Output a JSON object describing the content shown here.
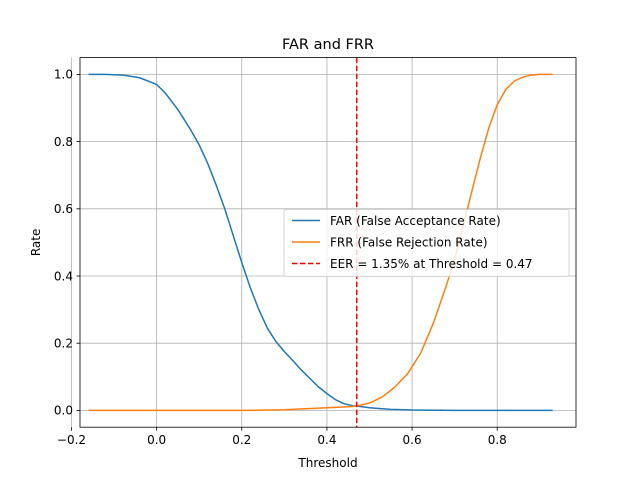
{
  "chart_data": {
    "type": "line",
    "title": "FAR and FRR",
    "xlabel": "Threshold",
    "ylabel": "Rate",
    "xlim": [
      -0.18,
      0.985
    ],
    "ylim": [
      -0.05,
      1.05
    ],
    "xticks": [
      -0.2,
      0.0,
      0.2,
      0.4,
      0.6,
      0.8
    ],
    "xtick_labels": [
      "−0.2",
      "0.0",
      "0.2",
      "0.4",
      "0.6",
      "0.8"
    ],
    "yticks": [
      0.0,
      0.2,
      0.4,
      0.6,
      0.8,
      1.0
    ],
    "ytick_labels": [
      "0.0",
      "0.2",
      "0.4",
      "0.6",
      "0.8",
      "1.0"
    ],
    "grid": true,
    "legend_position": "center-right",
    "series": [
      {
        "name": "FAR (False Acceptance Rate)",
        "color": "#1f77b4",
        "x": [
          -0.16,
          -0.12,
          -0.08,
          -0.04,
          0.0,
          0.02,
          0.05,
          0.08,
          0.1,
          0.12,
          0.14,
          0.16,
          0.18,
          0.2,
          0.22,
          0.24,
          0.26,
          0.28,
          0.3,
          0.32,
          0.34,
          0.36,
          0.38,
          0.4,
          0.42,
          0.44,
          0.46,
          0.47,
          0.5,
          0.55,
          0.6,
          0.7,
          0.8,
          0.93
        ],
        "y": [
          1.0,
          1.0,
          0.998,
          0.99,
          0.97,
          0.945,
          0.895,
          0.835,
          0.79,
          0.735,
          0.67,
          0.6,
          0.52,
          0.44,
          0.365,
          0.3,
          0.245,
          0.205,
          0.175,
          0.148,
          0.12,
          0.095,
          0.07,
          0.05,
          0.032,
          0.02,
          0.014,
          0.013,
          0.008,
          0.003,
          0.001,
          0.0,
          0.0,
          0.0
        ]
      },
      {
        "name": "FRR (False Rejection Rate)",
        "color": "#ff7f0e",
        "x": [
          -0.16,
          0.0,
          0.2,
          0.3,
          0.35,
          0.4,
          0.45,
          0.47,
          0.5,
          0.53,
          0.56,
          0.59,
          0.62,
          0.65,
          0.68,
          0.7,
          0.72,
          0.74,
          0.76,
          0.78,
          0.8,
          0.82,
          0.84,
          0.86,
          0.88,
          0.9,
          0.93
        ],
        "y": [
          0.0,
          0.0,
          0.0,
          0.002,
          0.005,
          0.008,
          0.011,
          0.013,
          0.022,
          0.04,
          0.07,
          0.11,
          0.17,
          0.26,
          0.37,
          0.45,
          0.55,
          0.65,
          0.75,
          0.84,
          0.91,
          0.955,
          0.98,
          0.992,
          0.998,
          1.0,
          1.0
        ]
      }
    ],
    "eer_line": {
      "label": "EER = 1.35% at Threshold = 0.47",
      "x": 0.47,
      "color": "#ff0000",
      "style": "dashed"
    }
  }
}
